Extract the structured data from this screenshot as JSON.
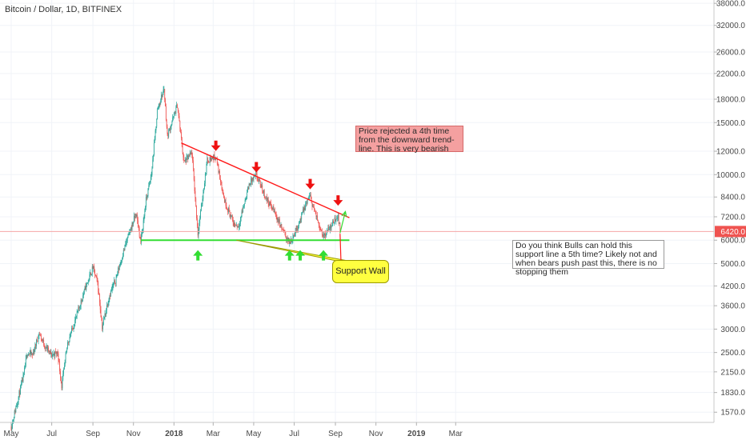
{
  "header": {
    "title": "Bitcoin / Dollar, 1D, BITFINEX"
  },
  "chart_data": {
    "type": "candlestick",
    "title": "Bitcoin / Dollar, 1D, BITFINEX",
    "y_scale": "log",
    "ylim": [
      1450,
      39000
    ],
    "y_ticks": [
      "38000.0",
      "32000.0",
      "26000.0",
      "22000.0",
      "18000.0",
      "15000.0",
      "12000.0",
      "10000.0",
      "8400.0",
      "7200.0",
      "6000.0",
      "5000.0",
      "4200.0",
      "3600.0",
      "3000.0",
      "2500.0",
      "2150.0",
      "1830.0",
      "1570.0"
    ],
    "x_ticks": [
      "May",
      "Jul",
      "Sep",
      "Nov",
      "2018",
      "Mar",
      "May",
      "Jul",
      "Sep",
      "Nov",
      "2019",
      "Mar"
    ],
    "x_tick_bold": [
      "2018",
      "2019"
    ],
    "last_price": "6420.0",
    "last_price_value": 6420,
    "colors": {
      "up": "#26a69a",
      "down": "#ef5350",
      "trend": "#ff1a1a",
      "support": "#33dd33",
      "up_arrow": "#33dd33",
      "down_arrow": "#ee1111",
      "price_tag": "#ef5350"
    },
    "price_path": [
      [
        "2017-05-01",
        1400
      ],
      [
        "2017-05-10",
        1700
      ],
      [
        "2017-05-20",
        2100
      ],
      [
        "2017-05-25",
        2500
      ],
      [
        "2017-06-02",
        2450
      ],
      [
        "2017-06-12",
        2900
      ],
      [
        "2017-06-20",
        2650
      ],
      [
        "2017-06-30",
        2450
      ],
      [
        "2017-07-10",
        2500
      ],
      [
        "2017-07-16",
        1920
      ],
      [
        "2017-07-25",
        2700
      ],
      [
        "2017-08-05",
        3200
      ],
      [
        "2017-08-20",
        4100
      ],
      [
        "2017-09-01",
        4850
      ],
      [
        "2017-09-08",
        4300
      ],
      [
        "2017-09-15",
        3050
      ],
      [
        "2017-09-25",
        3850
      ],
      [
        "2017-10-05",
        4400
      ],
      [
        "2017-10-20",
        5800
      ],
      [
        "2017-11-05",
        7400
      ],
      [
        "2017-11-12",
        5900
      ],
      [
        "2017-11-20",
        8200
      ],
      [
        "2017-11-28",
        10000
      ],
      [
        "2017-12-07",
        16500
      ],
      [
        "2017-12-17",
        19600
      ],
      [
        "2017-12-22",
        13500
      ],
      [
        "2018-01-06",
        17200
      ],
      [
        "2018-01-16",
        11000
      ],
      [
        "2018-01-28",
        11800
      ],
      [
        "2018-02-06",
        6300
      ],
      [
        "2018-02-20",
        11200
      ],
      [
        "2018-03-05",
        11500
      ],
      [
        "2018-03-18",
        8200
      ],
      [
        "2018-04-01",
        6800
      ],
      [
        "2018-04-08",
        6700
      ],
      [
        "2018-04-25",
        9400
      ],
      [
        "2018-05-05",
        9900
      ],
      [
        "2018-05-20",
        8300
      ],
      [
        "2018-06-01",
        7500
      ],
      [
        "2018-06-12",
        6600
      ],
      [
        "2018-06-24",
        5850
      ],
      [
        "2018-07-05",
        6600
      ],
      [
        "2018-07-22",
        8300
      ],
      [
        "2018-07-25",
        8400
      ],
      [
        "2018-08-05",
        7000
      ],
      [
        "2018-08-14",
        6200
      ],
      [
        "2018-08-25",
        6700
      ],
      [
        "2018-09-05",
        7300
      ],
      [
        "2018-09-08",
        6420
      ]
    ],
    "trend_line": {
      "start": [
        "2018-01-12",
        12800
      ],
      "end": [
        "2018-09-22",
        7150
      ]
    },
    "support_line": {
      "value": 6000,
      "start": "2017-11-12",
      "end": "2018-09-22"
    },
    "rejection_points": [
      [
        "2018-03-05",
        12400
      ],
      [
        "2018-05-05",
        10500
      ],
      [
        "2018-07-25",
        9200
      ],
      [
        "2018-09-05",
        8100
      ]
    ],
    "support_tests": [
      [
        "2018-02-06",
        5350
      ],
      [
        "2018-06-24",
        5350
      ],
      [
        "2018-07-10",
        5350
      ],
      [
        "2018-08-14",
        5350
      ]
    ],
    "scenario_arrows": {
      "bull": {
        "from": [
          "2018-09-08",
          6350
        ],
        "to": [
          "2018-09-16",
          7500
        ]
      },
      "bear": {
        "from": [
          "2018-09-08",
          6300
        ],
        "to": [
          "2018-09-10",
          4600
        ]
      }
    },
    "annotations": [
      {
        "id": "rejection-note",
        "text": "Price rejected a 4th time from the downward trend-line. This is very bearish"
      },
      {
        "id": "question-note",
        "text": "Do you think Bulls can hold this support line a 5th time? Likely not and when bears push past this, there is no stopping them"
      },
      {
        "id": "support-wall-note",
        "text": "Support Wall"
      }
    ]
  }
}
